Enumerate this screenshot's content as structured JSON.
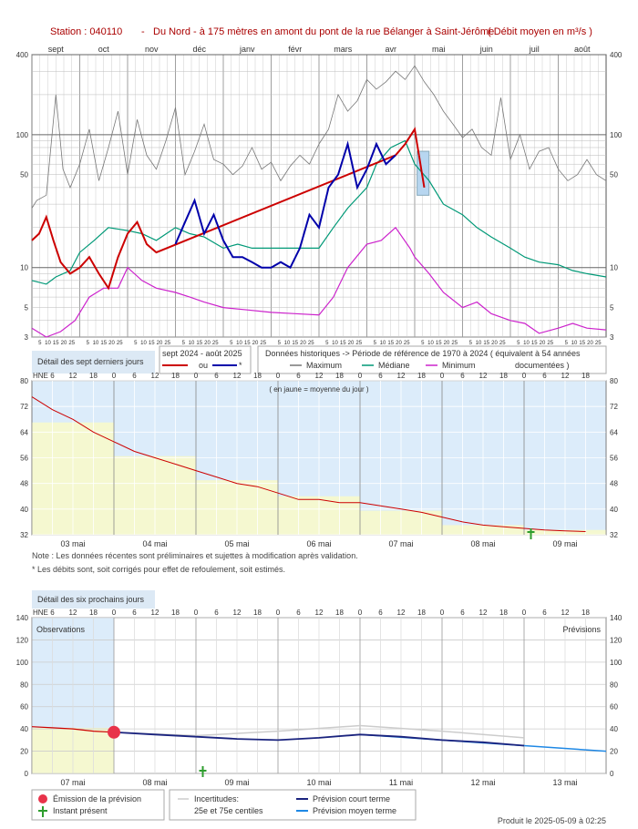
{
  "header": {
    "station": "Station : 040110",
    "separator": "-",
    "description": "Du Nord - à 175 mètres en amont du pont de la rue Bélanger à Saint-Jérôme",
    "unit_note": "( Débit moyen en m³/s )"
  },
  "annual_chart": {
    "months": [
      "sept",
      "oct",
      "nov",
      "déc",
      "janv",
      "févr",
      "mars",
      "avr",
      "mai",
      "juin",
      "juil",
      "août"
    ],
    "y_ticks": [
      "400",
      "100",
      "50",
      "10",
      "5",
      "3"
    ],
    "day_ticks": [
      "5",
      "10",
      "15",
      "20",
      "25"
    ]
  },
  "legend_annual": {
    "detail_7days_button": "Détail des sept derniers jours",
    "period_label": "sept 2024 - août 2025",
    "ou_label": "ou",
    "star_label": "*",
    "historical_title": "Données historiques -> Période de référence  de 1970 à 2024   ( équivalent à 54 années",
    "maximum_label": "Maximum",
    "median_label": "Médiane",
    "minimum_label": "Minimum",
    "documented_label": "documentées )"
  },
  "week_chart": {
    "hne_label": "HNE",
    "hours": [
      "6",
      "12",
      "18",
      "0",
      "6",
      "12",
      "18",
      "0",
      "6",
      "12",
      "18",
      "0",
      "6",
      "12",
      "18",
      "0",
      "6",
      "12",
      "18",
      "0",
      "6",
      "12",
      "18",
      "0",
      "6",
      "12",
      "18"
    ],
    "y_ticks": [
      "80",
      "72",
      "64",
      "56",
      "48",
      "40",
      "32"
    ],
    "days": [
      "03 mai",
      "04 mai",
      "05 mai",
      "06 mai",
      "07 mai",
      "08 mai",
      "09 mai"
    ],
    "yellow_note": "( en jaune = moyenne du jour )"
  },
  "notes": {
    "line1": "Note : Les données récentes sont préliminaires et sujettes à modification après validation.",
    "line2": "* Les débits sont, soit corrigés pour effet de refoulement, soit estimés."
  },
  "forecast_chart": {
    "detail_6days_button": "Détail des six prochains jours",
    "hne_label": "HNE",
    "hours": [
      "6",
      "12",
      "18",
      "0",
      "6",
      "12",
      "18",
      "0",
      "6",
      "12",
      "18",
      "0",
      "6",
      "12",
      "18",
      "0",
      "6",
      "12",
      "18",
      "0",
      "6",
      "12",
      "18",
      "0",
      "6",
      "12",
      "18"
    ],
    "y_ticks": [
      "140",
      "120",
      "100",
      "80",
      "60",
      "40",
      "20",
      "0"
    ],
    "days": [
      "07 mai",
      "08 mai",
      "09 mai",
      "10 mai",
      "11 mai",
      "12 mai",
      "13 mai"
    ],
    "observations_label": "Observations",
    "previsions_label": "Prévisions"
  },
  "legend_forecast": {
    "emission_label": "Émission de la prévision",
    "instant_label": "Instant présent",
    "uncertainties_label": "Incertitudes:",
    "centiles_label": "25e et 75e centiles",
    "short_term_label": "Prévision court terme",
    "mid_term_label": "Prévision moyen terme"
  },
  "footer": {
    "produced": "Produit le 2025-05-09 à 02:25"
  },
  "colors": {
    "observed_red": "#cc0000",
    "observed_blue": "#0000aa",
    "maximum": "#777777",
    "median": "#009977",
    "minimum": "#cc22cc",
    "panel_blue": "#dcecfa",
    "daily_mean_yellow": "#f5f8d0",
    "short_term": "#1a237e",
    "mid_term": "#1e88e5",
    "emission_marker": "#e8334a",
    "instant_marker": "#2e9d2e"
  },
  "chart_data": [
    {
      "type": "line",
      "title": "Station : 040110 - Du Nord - à 175 mètres en amont du pont de la rue Bélanger à Saint-Jérôme ( Débit moyen en m³/s )",
      "scale": "log",
      "ylim": [
        3,
        400
      ],
      "x_unit": "months (sept=0 ... août=12)",
      "series": [
        {
          "name": "Maximum",
          "x": [
            0,
            0.1,
            0.3,
            0.5,
            0.65,
            0.8,
            1.0,
            1.2,
            1.4,
            1.6,
            1.8,
            2.0,
            2.2,
            2.4,
            2.6,
            2.8,
            3.0,
            3.2,
            3.4,
            3.6,
            3.8,
            4.0,
            4.2,
            4.4,
            4.6,
            4.8,
            5.0,
            5.2,
            5.4,
            5.6,
            5.8,
            6.0,
            6.2,
            6.4,
            6.6,
            6.8,
            7.0,
            7.2,
            7.4,
            7.6,
            7.8,
            8.0,
            8.2,
            8.4,
            8.6,
            8.8,
            9.0,
            9.2,
            9.4,
            9.6,
            9.8,
            10.0,
            10.2,
            10.4,
            10.6,
            10.8,
            11.0,
            11.2,
            11.4,
            11.6,
            11.8,
            12.0
          ],
          "values": [
            28,
            32,
            35,
            200,
            55,
            40,
            60,
            110,
            45,
            80,
            150,
            50,
            130,
            70,
            55,
            90,
            160,
            50,
            75,
            120,
            65,
            60,
            50,
            58,
            80,
            55,
            62,
            45,
            58,
            70,
            60,
            85,
            110,
            200,
            150,
            180,
            260,
            220,
            250,
            300,
            260,
            330,
            250,
            200,
            150,
            120,
            95,
            110,
            80,
            70,
            190,
            65,
            100,
            55,
            75,
            80,
            55,
            45,
            50,
            65,
            50,
            45
          ]
        },
        {
          "name": "Médiane",
          "x": [
            0,
            0.3,
            0.5,
            0.8,
            1.0,
            1.3,
            1.6,
            2.0,
            2.3,
            2.6,
            3.0,
            3.3,
            3.6,
            4.0,
            4.3,
            4.6,
            5.0,
            5.3,
            5.6,
            6.0,
            6.3,
            6.6,
            7.0,
            7.2,
            7.5,
            7.8,
            8.0,
            8.3,
            8.6,
            9.0,
            9.3,
            9.6,
            10.0,
            10.3,
            10.6,
            11.0,
            11.3,
            11.6,
            12.0
          ],
          "values": [
            8,
            7.5,
            8.5,
            9.5,
            13,
            16,
            20,
            19,
            18,
            16,
            20,
            18,
            17,
            14,
            15,
            14,
            14,
            14,
            14,
            14,
            20,
            28,
            40,
            60,
            80,
            90,
            60,
            45,
            30,
            25,
            20,
            17,
            14,
            12,
            11,
            10.5,
            9.5,
            9,
            8.5
          ]
        },
        {
          "name": "Minimum",
          "x": [
            0,
            0.3,
            0.6,
            0.9,
            1.2,
            1.5,
            1.8,
            2.0,
            2.3,
            2.6,
            3.0,
            3.3,
            3.6,
            4.0,
            4.5,
            5.0,
            5.5,
            6.0,
            6.3,
            6.6,
            7.0,
            7.3,
            7.6,
            7.9,
            8.0,
            8.3,
            8.6,
            9.0,
            9.3,
            9.6,
            10.0,
            10.3,
            10.6,
            11.0,
            11.3,
            11.6,
            12.0
          ],
          "values": [
            3.5,
            3,
            3.3,
            4,
            6,
            7,
            7,
            10,
            8,
            7,
            6.5,
            6,
            5.5,
            5,
            4.8,
            4.6,
            4.5,
            4.4,
            6,
            10,
            15,
            16,
            20,
            14,
            12,
            9,
            6.5,
            5,
            5.5,
            4.5,
            4,
            3.8,
            3.2,
            3.5,
            3.8,
            3.5,
            3.4
          ]
        },
        {
          "name": "sept 2024 - août 2025",
          "x": [
            0,
            0.15,
            0.3,
            0.45,
            0.6,
            0.8,
            1.0,
            1.2,
            1.4,
            1.6,
            1.8,
            2.0,
            2.2,
            2.4,
            2.6,
            7.6,
            7.8,
            8.0,
            8.2
          ],
          "values": [
            16,
            18,
            24,
            16,
            11,
            9,
            10,
            12,
            9,
            7,
            12,
            18,
            22,
            15,
            13,
            70,
            85,
            110,
            40
          ]
        },
        {
          "name": "ou *",
          "x": [
            3.0,
            3.2,
            3.4,
            3.6,
            3.8,
            4.0,
            4.2,
            4.4,
            4.6,
            4.8,
            5.0,
            5.2,
            5.4,
            5.6,
            5.8,
            6.0,
            6.2,
            6.4,
            6.6,
            6.8,
            7.0,
            7.2,
            7.4,
            7.6
          ],
          "values": [
            15,
            22,
            32,
            18,
            25,
            16,
            12,
            12,
            11,
            10,
            10,
            11,
            10,
            14,
            25,
            20,
            40,
            50,
            85,
            40,
            55,
            85,
            60,
            70
          ]
        }
      ]
    },
    {
      "type": "line",
      "title": "Détail des sept derniers jours",
      "ylim": [
        32,
        80
      ],
      "xlabel": "HNE",
      "x_unit": "hours since 03 mai 00:00",
      "series": [
        {
          "name": "Débit",
          "x": [
            0,
            6,
            12,
            18,
            24,
            30,
            36,
            42,
            48,
            54,
            60,
            66,
            72,
            78,
            84,
            90,
            96,
            102,
            108,
            114,
            120,
            126,
            132,
            138,
            144,
            150,
            156,
            162
          ],
          "values": [
            75,
            71,
            68,
            64,
            61,
            58,
            56,
            54,
            52,
            50,
            48,
            47,
            45,
            43,
            43,
            42,
            42,
            41,
            40,
            39,
            37.5,
            36,
            35,
            34.5,
            34,
            33.5,
            33.2,
            33
          ]
        },
        {
          "name": "moyenne du jour",
          "categories": [
            "03 mai",
            "04 mai",
            "05 mai",
            "06 mai",
            "07 mai",
            "08 mai",
            "09 mai"
          ],
          "values": [
            67,
            56.5,
            49,
            44,
            39.5,
            35,
            33.5
          ]
        }
      ]
    },
    {
      "type": "line",
      "title": "Détail des six prochains jours",
      "ylim": [
        0,
        140
      ],
      "xlabel": "HNE",
      "x_unit": "hours since 07 mai 00:00",
      "series": [
        {
          "name": "Observations",
          "x": [
            0,
            6,
            12,
            18,
            24
          ],
          "values": [
            42,
            41,
            40,
            38,
            37
          ]
        },
        {
          "name": "Prévision court terme",
          "x": [
            24,
            36,
            48,
            60,
            72,
            84,
            96,
            108,
            120,
            132,
            144
          ],
          "values": [
            37,
            35,
            33,
            31,
            30,
            32,
            35,
            33,
            30,
            28,
            25
          ]
        },
        {
          "name": "25e et 75e centiles",
          "x": [
            24,
            48,
            72,
            96,
            120,
            144
          ],
          "values": [
            37,
            34,
            38,
            43,
            38,
            32
          ]
        },
        {
          "name": "Prévision moyen terme",
          "x": [
            96,
            120,
            144,
            168
          ],
          "values": [
            35,
            30,
            25,
            20
          ]
        }
      ]
    }
  ]
}
